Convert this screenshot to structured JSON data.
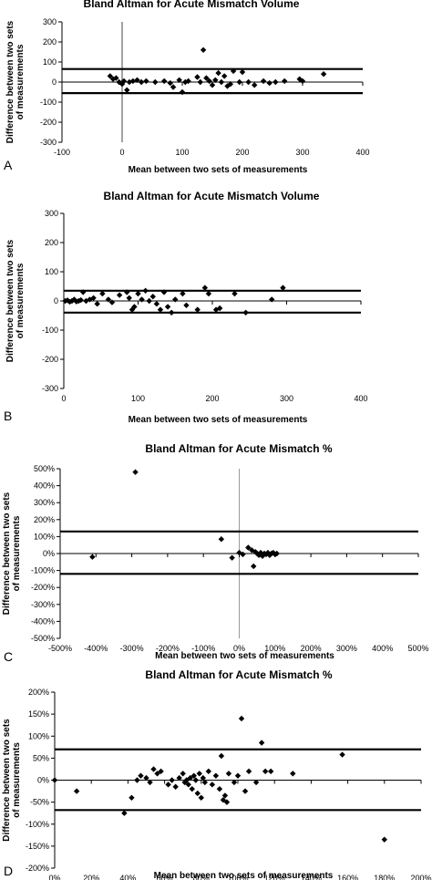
{
  "chart_data": [
    {
      "type": "scatter",
      "panel": "A",
      "title": "Bland Altman for Acute Mismatch Volume",
      "xlabel": "Mean between two sets of measurements",
      "ylabel": "Difference between two sets of measurements",
      "xlim": [
        -100,
        400
      ],
      "ylim": [
        -300,
        300
      ],
      "xticks": [
        -100,
        0,
        100,
        200,
        300,
        400
      ],
      "yticks": [
        -300,
        -200,
        -100,
        0,
        100,
        200,
        300
      ],
      "xtick_labels": [
        "-100",
        "0",
        "100",
        "200",
        "300",
        "400"
      ],
      "ytick_labels": [
        "-300",
        "-200",
        "-100",
        "0",
        "100",
        "200",
        "300"
      ],
      "grid": false,
      "zero_line_x": 0,
      "limits_of_agreement": [
        65,
        -55
      ],
      "points": [
        {
          "x": -20,
          "y": 30
        },
        {
          "x": -15,
          "y": 15
        },
        {
          "x": -10,
          "y": 20
        },
        {
          "x": -5,
          "y": 0
        },
        {
          "x": 0,
          "y": -10
        },
        {
          "x": 3,
          "y": 5
        },
        {
          "x": 8,
          "y": -40
        },
        {
          "x": 12,
          "y": 0
        },
        {
          "x": 18,
          "y": 5
        },
        {
          "x": 25,
          "y": 10
        },
        {
          "x": 32,
          "y": 0
        },
        {
          "x": 40,
          "y": 5
        },
        {
          "x": 55,
          "y": 0
        },
        {
          "x": 70,
          "y": 5
        },
        {
          "x": 80,
          "y": -5
        },
        {
          "x": 85,
          "y": -25
        },
        {
          "x": 95,
          "y": 10
        },
        {
          "x": 100,
          "y": -50
        },
        {
          "x": 105,
          "y": 0
        },
        {
          "x": 110,
          "y": 5
        },
        {
          "x": 125,
          "y": 25
        },
        {
          "x": 130,
          "y": 0
        },
        {
          "x": 135,
          "y": 160
        },
        {
          "x": 140,
          "y": 20
        },
        {
          "x": 145,
          "y": 5
        },
        {
          "x": 150,
          "y": -15
        },
        {
          "x": 155,
          "y": 10
        },
        {
          "x": 160,
          "y": 45
        },
        {
          "x": 165,
          "y": 0
        },
        {
          "x": 170,
          "y": 30
        },
        {
          "x": 175,
          "y": -20
        },
        {
          "x": 180,
          "y": -10
        },
        {
          "x": 185,
          "y": 55
        },
        {
          "x": 195,
          "y": 0
        },
        {
          "x": 200,
          "y": 50
        },
        {
          "x": 210,
          "y": 0
        },
        {
          "x": 220,
          "y": -15
        },
        {
          "x": 235,
          "y": 5
        },
        {
          "x": 245,
          "y": -5
        },
        {
          "x": 255,
          "y": 0
        },
        {
          "x": 270,
          "y": 5
        },
        {
          "x": 295,
          "y": 15
        },
        {
          "x": 300,
          "y": 5
        },
        {
          "x": 335,
          "y": 40
        }
      ]
    },
    {
      "type": "scatter",
      "panel": "B",
      "title": "Bland Altman for Acute Mismatch Volume",
      "xlabel": "Mean between two sets of measurements",
      "ylabel": "Difference between two sets of measurements",
      "xlim": [
        0,
        400
      ],
      "ylim": [
        -300,
        300
      ],
      "xticks": [
        0,
        100,
        200,
        300,
        400
      ],
      "yticks": [
        -300,
        -200,
        -100,
        0,
        100,
        200,
        300
      ],
      "xtick_labels": [
        "0",
        "100",
        "200",
        "300",
        "400"
      ],
      "ytick_labels": [
        "-300",
        "-200",
        "-100",
        "0",
        "100",
        "200",
        "300"
      ],
      "grid": false,
      "limits_of_agreement": [
        35,
        -40
      ],
      "points": [
        {
          "x": 2,
          "y": 0
        },
        {
          "x": 5,
          "y": 2
        },
        {
          "x": 8,
          "y": -3
        },
        {
          "x": 11,
          "y": 0
        },
        {
          "x": 14,
          "y": 5
        },
        {
          "x": 17,
          "y": -2
        },
        {
          "x": 20,
          "y": 0
        },
        {
          "x": 23,
          "y": 3
        },
        {
          "x": 26,
          "y": 30
        },
        {
          "x": 30,
          "y": 0
        },
        {
          "x": 35,
          "y": 5
        },
        {
          "x": 40,
          "y": 10
        },
        {
          "x": 45,
          "y": -10
        },
        {
          "x": 52,
          "y": 25
        },
        {
          "x": 60,
          "y": 5
        },
        {
          "x": 65,
          "y": -5
        },
        {
          "x": 75,
          "y": 20
        },
        {
          "x": 85,
          "y": 30
        },
        {
          "x": 88,
          "y": 10
        },
        {
          "x": 92,
          "y": -30
        },
        {
          "x": 95,
          "y": -20
        },
        {
          "x": 100,
          "y": 25
        },
        {
          "x": 105,
          "y": 5
        },
        {
          "x": 110,
          "y": 35
        },
        {
          "x": 115,
          "y": 0
        },
        {
          "x": 120,
          "y": 15
        },
        {
          "x": 125,
          "y": -10
        },
        {
          "x": 130,
          "y": -30
        },
        {
          "x": 135,
          "y": 30
        },
        {
          "x": 140,
          "y": -20
        },
        {
          "x": 145,
          "y": -40
        },
        {
          "x": 150,
          "y": 5
        },
        {
          "x": 160,
          "y": 25
        },
        {
          "x": 165,
          "y": -15
        },
        {
          "x": 180,
          "y": -30
        },
        {
          "x": 190,
          "y": 45
        },
        {
          "x": 195,
          "y": 25
        },
        {
          "x": 205,
          "y": -30
        },
        {
          "x": 210,
          "y": -25
        },
        {
          "x": 230,
          "y": 25
        },
        {
          "x": 245,
          "y": -40
        },
        {
          "x": 280,
          "y": 5
        },
        {
          "x": 295,
          "y": 45
        }
      ]
    },
    {
      "type": "scatter",
      "panel": "C",
      "title": "Bland Altman for Acute Mismatch %",
      "xlabel": "Mean between two sets of measurements",
      "ylabel": "Difference between two sets of measurements",
      "xlim": [
        -500,
        500
      ],
      "ylim": [
        -500,
        500
      ],
      "xticks": [
        -500,
        -400,
        -300,
        -200,
        -100,
        0,
        100,
        200,
        300,
        400,
        500
      ],
      "yticks": [
        -500,
        -400,
        -300,
        -200,
        -100,
        0,
        100,
        200,
        300,
        400,
        500
      ],
      "xtick_labels": [
        "-500%",
        "-400%",
        "-300%",
        "-200%",
        "-100%",
        "0%",
        "100%",
        "200%",
        "300%",
        "400%",
        "500%"
      ],
      "ytick_labels": [
        "-500%",
        "-400%",
        "-300%",
        "-200%",
        "-100%",
        "0%",
        "100%",
        "200%",
        "300%",
        "400%",
        "500%"
      ],
      "grid": false,
      "zero_line_x": 0,
      "limits_of_agreement": [
        130,
        -120
      ],
      "points": [
        {
          "x": -290,
          "y": 480
        },
        {
          "x": -410,
          "y": -20
        },
        {
          "x": -50,
          "y": 85
        },
        {
          "x": -20,
          "y": -25
        },
        {
          "x": 0,
          "y": 5
        },
        {
          "x": 10,
          "y": -5
        },
        {
          "x": 25,
          "y": 35
        },
        {
          "x": 35,
          "y": 20
        },
        {
          "x": 40,
          "y": -75
        },
        {
          "x": 45,
          "y": 10
        },
        {
          "x": 50,
          "y": 0
        },
        {
          "x": 55,
          "y": -10
        },
        {
          "x": 60,
          "y": 5
        },
        {
          "x": 65,
          "y": -15
        },
        {
          "x": 70,
          "y": 0
        },
        {
          "x": 75,
          "y": -5
        },
        {
          "x": 80,
          "y": 5
        },
        {
          "x": 85,
          "y": -10
        },
        {
          "x": 90,
          "y": 0
        },
        {
          "x": 95,
          "y": 5
        },
        {
          "x": 100,
          "y": -5
        },
        {
          "x": 105,
          "y": 0
        }
      ]
    },
    {
      "type": "scatter",
      "panel": "D",
      "title": "Bland Altman for Acute Mismatch %",
      "xlabel": "Mean between two sets of measurements",
      "ylabel": "Difference between two sets of measurements",
      "xlim": [
        0,
        200
      ],
      "ylim": [
        -200,
        200
      ],
      "xticks": [
        0,
        20,
        40,
        60,
        80,
        100,
        120,
        140,
        160,
        180,
        200
      ],
      "yticks": [
        -200,
        -150,
        -100,
        -50,
        0,
        50,
        100,
        150,
        200
      ],
      "xtick_labels": [
        "0%",
        "20%",
        "40%",
        "60%",
        "80%",
        "100%",
        "120%",
        "140%",
        "160%",
        "180%",
        "200%"
      ],
      "ytick_labels": [
        "-200%",
        "-150%",
        "-100%",
        "-50%",
        "0%",
        "50%",
        "100%",
        "150%",
        "200%"
      ],
      "grid": false,
      "limits_of_agreement": [
        70,
        -68
      ],
      "points": [
        {
          "x": 0,
          "y": 0
        },
        {
          "x": 12,
          "y": -25
        },
        {
          "x": 38,
          "y": -75
        },
        {
          "x": 42,
          "y": -40
        },
        {
          "x": 45,
          "y": 0
        },
        {
          "x": 47,
          "y": 10
        },
        {
          "x": 50,
          "y": 5
        },
        {
          "x": 52,
          "y": -5
        },
        {
          "x": 54,
          "y": 25
        },
        {
          "x": 56,
          "y": 15
        },
        {
          "x": 58,
          "y": 20
        },
        {
          "x": 62,
          "y": -10
        },
        {
          "x": 64,
          "y": 0
        },
        {
          "x": 66,
          "y": -15
        },
        {
          "x": 68,
          "y": 5
        },
        {
          "x": 70,
          "y": 15
        },
        {
          "x": 71,
          "y": -5
        },
        {
          "x": 72,
          "y": 0
        },
        {
          "x": 73,
          "y": -10
        },
        {
          "x": 74,
          "y": 5
        },
        {
          "x": 75,
          "y": -20
        },
        {
          "x": 76,
          "y": 10
        },
        {
          "x": 77,
          "y": 0
        },
        {
          "x": 78,
          "y": -30
        },
        {
          "x": 79,
          "y": 15
        },
        {
          "x": 80,
          "y": -40
        },
        {
          "x": 81,
          "y": 5
        },
        {
          "x": 82,
          "y": -5
        },
        {
          "x": 84,
          "y": 20
        },
        {
          "x": 86,
          "y": -10
        },
        {
          "x": 88,
          "y": 10
        },
        {
          "x": 90,
          "y": -20
        },
        {
          "x": 91,
          "y": 55
        },
        {
          "x": 92,
          "y": -45
        },
        {
          "x": 93,
          "y": -35
        },
        {
          "x": 94,
          "y": -50
        },
        {
          "x": 95,
          "y": 15
        },
        {
          "x": 98,
          "y": -5
        },
        {
          "x": 100,
          "y": 10
        },
        {
          "x": 102,
          "y": 140
        },
        {
          "x": 104,
          "y": -25
        },
        {
          "x": 106,
          "y": 20
        },
        {
          "x": 110,
          "y": -5
        },
        {
          "x": 113,
          "y": 85
        },
        {
          "x": 115,
          "y": 20
        },
        {
          "x": 118,
          "y": 20
        },
        {
          "x": 130,
          "y": 15
        },
        {
          "x": 157,
          "y": 58
        },
        {
          "x": 180,
          "y": -135
        }
      ]
    }
  ]
}
